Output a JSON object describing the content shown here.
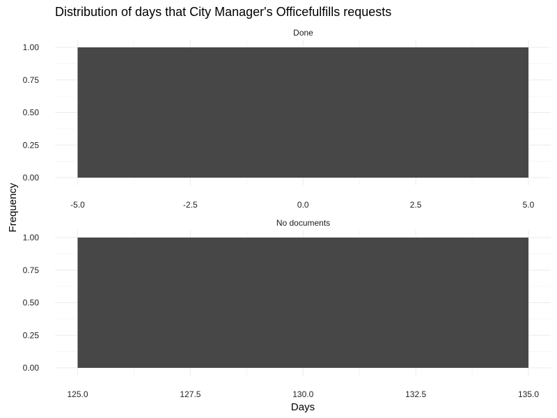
{
  "chart_data": {
    "type": "bar",
    "title": "Distribution of days that City Manager's Officefulfills requests",
    "xlabel": "Days",
    "ylabel": "Frequency",
    "bar_color": "#474747",
    "grid": true,
    "panels": [
      {
        "label": "Done",
        "xlim": [
          -5.0,
          5.0
        ],
        "ylim": [
          0,
          1
        ],
        "xticks": [
          -5.0,
          -2.5,
          0.0,
          2.5,
          5.0
        ],
        "xtick_labels": [
          "-5.0",
          "-2.5",
          "0.0",
          "2.5",
          "5.0"
        ],
        "yticks": [
          0,
          0.25,
          0.5,
          0.75,
          1
        ],
        "ytick_labels": [
          "0.00",
          "0.25",
          "0.50",
          "0.75",
          "1.00"
        ],
        "bins": [
          {
            "x0": -5.0,
            "x1": 5.0,
            "count": 1
          }
        ]
      },
      {
        "label": "No documents",
        "xlim": [
          125.0,
          135.0
        ],
        "ylim": [
          0,
          1
        ],
        "xticks": [
          125.0,
          127.5,
          130.0,
          132.5,
          135.0
        ],
        "xtick_labels": [
          "125.0",
          "127.5",
          "130.0",
          "132.5",
          "135.0"
        ],
        "yticks": [
          0,
          0.25,
          0.5,
          0.75,
          1
        ],
        "ytick_labels": [
          "0.00",
          "0.25",
          "0.50",
          "0.75",
          "1.00"
        ],
        "bins": [
          {
            "x0": 125.0,
            "x1": 135.0,
            "count": 1
          }
        ]
      }
    ]
  }
}
